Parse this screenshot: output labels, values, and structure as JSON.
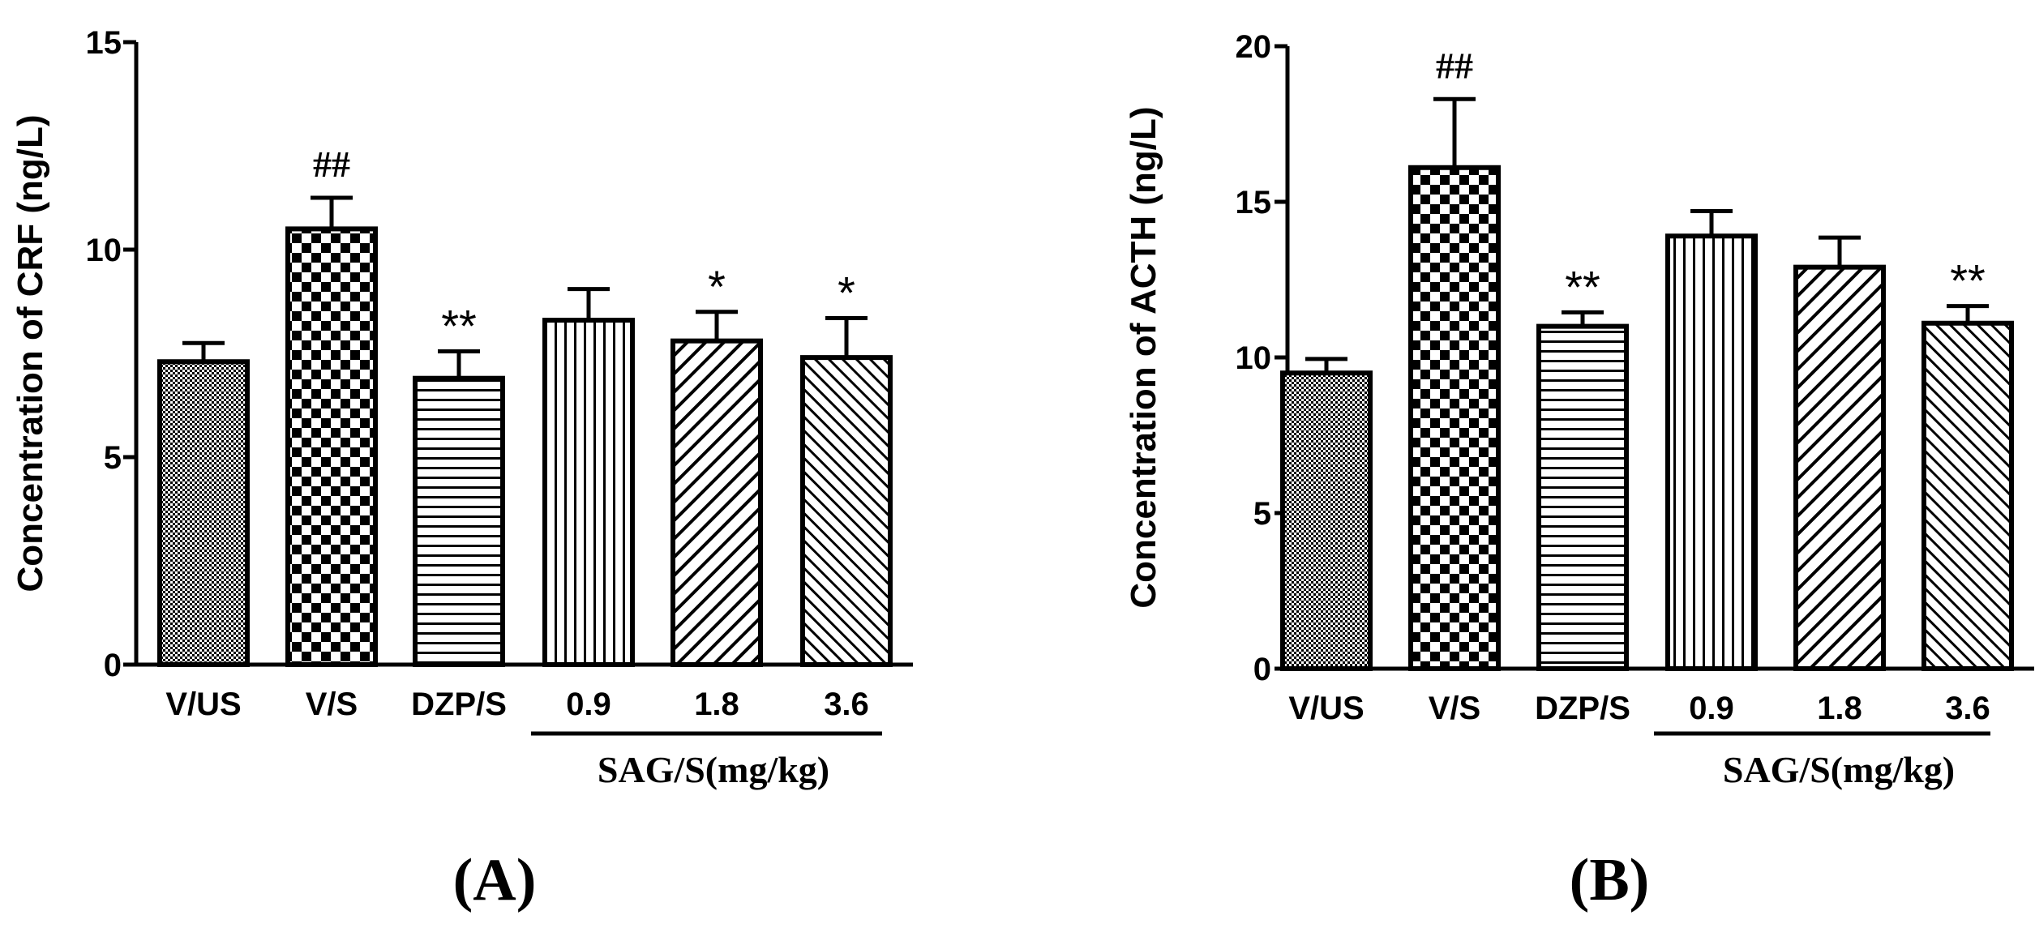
{
  "chart_data": [
    {
      "type": "bar",
      "panel_label": "(A)",
      "ylabel": "Concentration of CRF (ng/L)",
      "ylim": [
        0,
        15
      ],
      "yticks": [
        "0",
        "5",
        "10",
        "15"
      ],
      "ytick_values": [
        0,
        5,
        10,
        15
      ],
      "categories": [
        "V/US",
        "V/S",
        "DZP/S",
        "0.9",
        "1.8",
        "3.6"
      ],
      "values": [
        7.3,
        10.5,
        6.9,
        8.3,
        7.8,
        7.4
      ],
      "errors": [
        0.45,
        0.75,
        0.65,
        0.75,
        0.7,
        0.95
      ],
      "significance": [
        "",
        "##",
        "**",
        "",
        "*",
        "*"
      ],
      "patterns": [
        "dots",
        "checker",
        "hlines",
        "vlines",
        "diag-wide",
        "diag-narrow"
      ],
      "group_label": "SAG/S(mg/kg)",
      "group_span": [
        3,
        5
      ]
    },
    {
      "type": "bar",
      "panel_label": "(B)",
      "ylabel": "Concentration of ACTH (ng/L)",
      "ylim": [
        0,
        20
      ],
      "yticks": [
        "0",
        "5",
        "10",
        "15",
        "20"
      ],
      "ytick_values": [
        0,
        5,
        10,
        15,
        20
      ],
      "categories": [
        "V/US",
        "V/S",
        "DZP/S",
        "0.9",
        "1.8",
        "3.6"
      ],
      "values": [
        9.5,
        16.1,
        11.0,
        13.9,
        12.9,
        11.1
      ],
      "errors": [
        0.45,
        2.2,
        0.45,
        0.8,
        0.95,
        0.55
      ],
      "significance": [
        "",
        "##",
        "**",
        "",
        "",
        "**"
      ],
      "patterns": [
        "dots",
        "checker",
        "hlines",
        "vlines",
        "diag-wide",
        "diag-narrow"
      ],
      "group_label": "SAG/S(mg/kg)",
      "group_span": [
        3,
        5
      ]
    }
  ]
}
